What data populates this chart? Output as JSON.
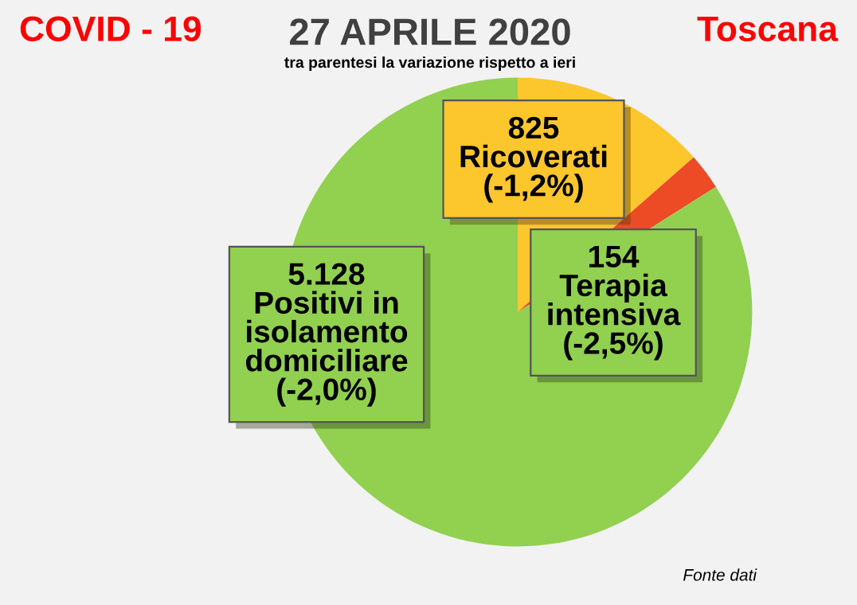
{
  "chart_data": {
    "type": "pie",
    "title": "27 APRILE 2020",
    "subtitle": "tra parentesi la variazione rispetto a ieri",
    "categories": [
      "Ricoverati",
      "Terapia\nintensiva",
      "Positivi in\nisolamento\ndomiciliare"
    ],
    "values": [
      825,
      154,
      5128
    ],
    "value_labels": [
      "825",
      "154",
      "5.128"
    ],
    "colors": [
      "#fcc62d",
      "#ec4b25",
      "#92d050"
    ],
    "annotations": [
      {
        "text": "(-1,2%)",
        "x": "Ricoverati"
      },
      {
        "text": "(-2,5%)",
        "x": "Terapia\nintensiva"
      },
      {
        "text": "(-2,0%)",
        "x": "Positivi in\nisolamento\ndomiciliare"
      },
      "COVID - 19",
      "Toscana",
      "Fonte dati"
    ]
  }
}
